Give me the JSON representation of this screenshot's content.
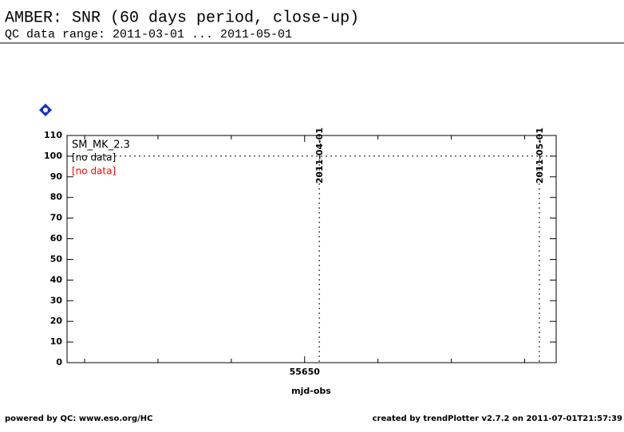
{
  "chart_data": {
    "type": "line",
    "title": "AMBER: SNR (60 days period, close-up)",
    "subtitle": "QC data range: 2011-03-01 ... 2011-05-01",
    "plot_label": "SM_MK_2.3",
    "x_label": "mjd-obs",
    "x": [],
    "series": [
      {
        "name": "[no data]",
        "color": "#000000",
        "values": []
      },
      {
        "name": "[no data]",
        "color": "#ff0000",
        "values": []
      }
    ],
    "xlim": [
      55617.6,
      55684.3
    ],
    "xticks": [
      55650
    ],
    "xminor_ticks": [
      55620,
      55630,
      55640,
      55660,
      55670,
      55680
    ],
    "ylim": [
      0,
      110
    ],
    "yticks": [
      0,
      10,
      20,
      30,
      40,
      50,
      60,
      70,
      80,
      90,
      100,
      110
    ],
    "date_markers": [
      {
        "value": 55652,
        "label": "2011-04-01"
      },
      {
        "value": 55682,
        "label": "2011-05-01"
      }
    ],
    "hlines": [
      100
    ],
    "footer_left": "powered by QC: www.eso.org/HC",
    "footer_right": "created by trendPlotter v2.7.2 on 2011-07-01T21:57:39"
  }
}
